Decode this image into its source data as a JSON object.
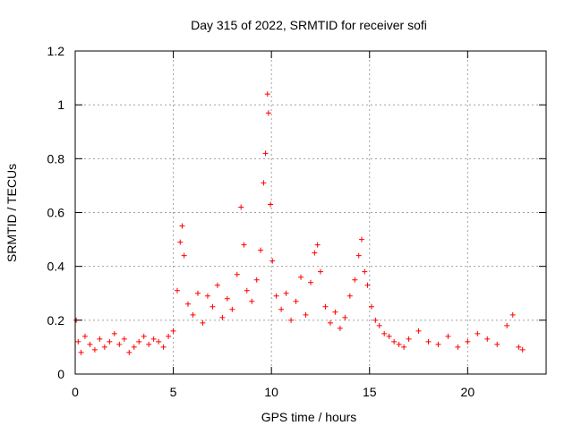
{
  "chart_data": {
    "type": "scatter",
    "title": "Day 315 of 2022, SRMTID for receiver sofi",
    "xlabel": "GPS time / hours",
    "ylabel": "SRMTID / TECUs",
    "xlim": [
      0,
      24
    ],
    "ylim": [
      0,
      1.2
    ],
    "xticks": [
      0,
      5,
      10,
      15,
      20
    ],
    "xtick_labels": [
      "0",
      "5",
      "10",
      "15",
      "20"
    ],
    "yticks": [
      0,
      0.2,
      0.4,
      0.6,
      0.8,
      1.0,
      1.2
    ],
    "ytick_labels": [
      "0",
      "0.2",
      "0.4",
      "0.6",
      "0.8",
      "1",
      "1.2"
    ],
    "grid": true,
    "marker": "+",
    "marker_color": "#ff0000",
    "series": [
      {
        "name": "SRMTID",
        "x": [
          0.05,
          0.15,
          0.3,
          0.5,
          0.75,
          1.0,
          1.25,
          1.5,
          1.75,
          2.0,
          2.25,
          2.5,
          2.75,
          3.0,
          3.25,
          3.5,
          3.75,
          4.0,
          4.25,
          4.5,
          4.75,
          5.0,
          5.2,
          5.35,
          5.45,
          5.55,
          5.75,
          6.0,
          6.25,
          6.5,
          6.75,
          7.0,
          7.25,
          7.5,
          7.75,
          8.0,
          8.25,
          8.45,
          8.6,
          8.75,
          9.0,
          9.25,
          9.45,
          9.6,
          9.7,
          9.8,
          9.85,
          9.95,
          10.05,
          10.25,
          10.5,
          10.75,
          11.0,
          11.25,
          11.5,
          11.75,
          12.0,
          12.2,
          12.35,
          12.5,
          12.75,
          13.0,
          13.25,
          13.5,
          13.75,
          14.0,
          14.25,
          14.45,
          14.6,
          14.75,
          14.9,
          15.1,
          15.3,
          15.5,
          15.75,
          16.0,
          16.25,
          16.5,
          16.75,
          17.0,
          17.5,
          18.0,
          18.5,
          19.0,
          19.5,
          20.0,
          20.5,
          21.0,
          21.5,
          22.0,
          22.3,
          22.6,
          22.8
        ],
        "y": [
          0.2,
          0.12,
          0.08,
          0.14,
          0.11,
          0.09,
          0.13,
          0.1,
          0.12,
          0.15,
          0.11,
          0.13,
          0.08,
          0.1,
          0.12,
          0.14,
          0.11,
          0.13,
          0.12,
          0.1,
          0.14,
          0.16,
          0.31,
          0.49,
          0.55,
          0.44,
          0.26,
          0.22,
          0.3,
          0.19,
          0.29,
          0.25,
          0.33,
          0.21,
          0.28,
          0.24,
          0.37,
          0.62,
          0.48,
          0.31,
          0.27,
          0.35,
          0.46,
          0.71,
          0.82,
          1.04,
          0.97,
          0.63,
          0.42,
          0.29,
          0.24,
          0.3,
          0.2,
          0.27,
          0.36,
          0.22,
          0.34,
          0.45,
          0.48,
          0.38,
          0.25,
          0.19,
          0.23,
          0.17,
          0.21,
          0.29,
          0.35,
          0.44,
          0.5,
          0.38,
          0.33,
          0.25,
          0.2,
          0.18,
          0.15,
          0.14,
          0.12,
          0.11,
          0.1,
          0.13,
          0.16,
          0.12,
          0.11,
          0.14,
          0.1,
          0.12,
          0.15,
          0.13,
          0.11,
          0.18,
          0.22,
          0.1,
          0.09
        ]
      }
    ]
  }
}
